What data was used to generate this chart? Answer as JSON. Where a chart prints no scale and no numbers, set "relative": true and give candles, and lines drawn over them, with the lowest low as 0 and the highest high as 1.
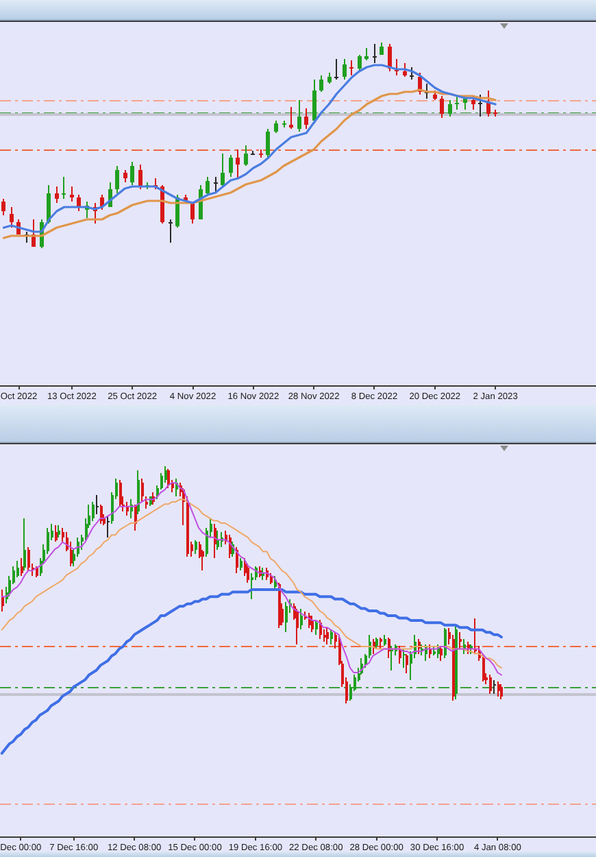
{
  "chart_data": [
    {
      "type": "candlestick",
      "relative": true,
      "categories": [
        null,
        null,
        "Oct 2022",
        null,
        null,
        null,
        null,
        null,
        null,
        "13 Oct 2022",
        null,
        null,
        null,
        null,
        null,
        null,
        null,
        "25 Oct 2022",
        null,
        null,
        null,
        null,
        null,
        null,
        null,
        "4 Nov 2022",
        null,
        null,
        null,
        null,
        null,
        null,
        null,
        "16 Nov 2022",
        null,
        null,
        null,
        null,
        null,
        null,
        null,
        "28 Nov 2022",
        null,
        null,
        null,
        null,
        null,
        null,
        null,
        "8 Dec 2022",
        null,
        null,
        null,
        null,
        null,
        null,
        null,
        "20 Dec 2022",
        null,
        null,
        null,
        null,
        null,
        null,
        null,
        "2 Jan 2023"
      ],
      "ohlc": [
        [
          0.23,
          0.24,
          0.16,
          0.18
        ],
        [
          0.17,
          0.2,
          0.1,
          0.13
        ],
        [
          0.13,
          0.14,
          0.07,
          0.07
        ],
        [
          0.07,
          0.08,
          0.03,
          0.07
        ],
        [
          0.07,
          0.14,
          0.01,
          0.01
        ],
        [
          0.01,
          0.14,
          0.0,
          0.13
        ],
        [
          0.13,
          0.31,
          0.12,
          0.27
        ],
        [
          0.27,
          0.3,
          0.22,
          0.24
        ],
        [
          0.26,
          0.35,
          0.24,
          0.27
        ],
        [
          0.26,
          0.3,
          0.23,
          0.25
        ],
        [
          0.25,
          0.26,
          0.18,
          0.2
        ],
        [
          0.19,
          0.23,
          0.15,
          0.21
        ],
        [
          0.2,
          0.22,
          0.12,
          0.18
        ],
        [
          0.25,
          0.26,
          0.19,
          0.2
        ],
        [
          0.2,
          0.32,
          0.2,
          0.29
        ],
        [
          0.29,
          0.4,
          0.27,
          0.38
        ],
        [
          0.37,
          0.38,
          0.32,
          0.34
        ],
        [
          0.32,
          0.42,
          0.31,
          0.4
        ],
        [
          0.38,
          0.41,
          0.29,
          0.3
        ],
        [
          0.3,
          0.32,
          0.29,
          0.31
        ],
        [
          0.31,
          0.34,
          0.29,
          0.3
        ],
        [
          0.3,
          0.31,
          0.12,
          0.13
        ],
        [
          0.13,
          0.14,
          0.03,
          0.13
        ],
        [
          0.11,
          0.26,
          0.1,
          0.25
        ],
        [
          0.25,
          0.26,
          0.22,
          0.23
        ],
        [
          0.22,
          0.23,
          0.12,
          0.14
        ],
        [
          0.14,
          0.31,
          0.14,
          0.29
        ],
        [
          0.27,
          0.35,
          0.26,
          0.33
        ],
        [
          0.32,
          0.35,
          0.27,
          0.32
        ],
        [
          0.31,
          0.46,
          0.3,
          0.37
        ],
        [
          0.37,
          0.45,
          0.35,
          0.44
        ],
        [
          0.44,
          0.48,
          0.34,
          0.41
        ],
        [
          0.41,
          0.5,
          0.4,
          0.46
        ],
        [
          0.46,
          0.47,
          0.45,
          0.46
        ],
        [
          0.46,
          0.48,
          0.44,
          0.45
        ],
        [
          0.45,
          0.58,
          0.44,
          0.57
        ],
        [
          0.57,
          0.62,
          0.56,
          0.61
        ],
        [
          0.6,
          0.62,
          0.59,
          0.61
        ],
        [
          0.6,
          0.69,
          0.58,
          0.59
        ],
        [
          0.58,
          0.72,
          0.57,
          0.64
        ],
        [
          0.64,
          0.68,
          0.58,
          0.6
        ],
        [
          0.62,
          0.82,
          0.61,
          0.77
        ],
        [
          0.77,
          0.84,
          0.76,
          0.82
        ],
        [
          0.81,
          0.85,
          0.8,
          0.83
        ],
        [
          0.83,
          0.92,
          0.82,
          0.83
        ],
        [
          0.83,
          0.92,
          0.82,
          0.89
        ],
        [
          0.88,
          0.91,
          0.84,
          0.87
        ],
        [
          0.87,
          0.94,
          0.86,
          0.93
        ],
        [
          0.92,
          0.97,
          0.91,
          0.93
        ],
        [
          0.93,
          0.99,
          0.9,
          0.93
        ],
        [
          0.94,
          1.0,
          0.94,
          0.98
        ],
        [
          0.98,
          0.99,
          0.86,
          0.87
        ],
        [
          0.87,
          0.92,
          0.84,
          0.86
        ],
        [
          0.86,
          0.9,
          0.83,
          0.84
        ],
        [
          0.84,
          0.88,
          0.82,
          0.84
        ],
        [
          0.83,
          0.85,
          0.75,
          0.76
        ],
        [
          0.76,
          0.8,
          0.73,
          0.76
        ],
        [
          0.75,
          0.77,
          0.72,
          0.73
        ],
        [
          0.73,
          0.74,
          0.63,
          0.65
        ],
        [
          0.65,
          0.72,
          0.64,
          0.7
        ],
        [
          0.7,
          0.74,
          0.67,
          0.71
        ],
        [
          0.71,
          0.74,
          0.67,
          0.73
        ],
        [
          0.72,
          0.74,
          0.67,
          0.7
        ],
        [
          0.71,
          0.75,
          0.64,
          0.71
        ],
        [
          0.71,
          0.77,
          0.64,
          0.65
        ],
        [
          0.66,
          0.67,
          0.64,
          0.65
        ]
      ],
      "colors": [
        "#d81818",
        "#d81818",
        "#d81818",
        "#2a2a2a",
        "#d81818",
        "#20a020",
        "#20a020",
        "#d81818",
        "#20a020",
        "#d81818",
        "#d81818",
        "#20a020",
        "#d81818",
        "#d81818",
        "#20a020",
        "#20a020",
        "#d81818",
        "#20a020",
        "#d81818",
        "#20a020",
        "#d81818",
        "#d81818",
        "#2a2a2a",
        "#20a020",
        "#d81818",
        "#d81818",
        "#20a020",
        "#20a020",
        "#2a2a2a",
        "#20a020",
        "#20a020",
        "#d81818",
        "#20a020",
        "#2a2a2a",
        "#d81818",
        "#20a020",
        "#20a020",
        "#20a020",
        "#d81818",
        "#20a020",
        "#d81818",
        "#20a020",
        "#20a020",
        "#20a020",
        "#2a2a2a",
        "#20a020",
        "#d81818",
        "#20a020",
        "#20a020",
        "#2a2a2a",
        "#20a020",
        "#d81818",
        "#d81818",
        "#d81818",
        "#2a2a2a",
        "#d81818",
        "#2a2a2a",
        "#d81818",
        "#d81818",
        "#20a020",
        "#20a020",
        "#20a020",
        "#d81818",
        "#2a2a2a",
        "#d81818",
        "#d81818"
      ],
      "series": [
        {
          "type": "line",
          "color": "#4a7de0",
          "values": [
            0.1,
            0.11,
            0.1,
            0.09,
            0.08,
            0.08,
            0.14,
            0.18,
            0.2,
            0.2,
            0.2,
            0.2,
            0.19,
            0.2,
            0.23,
            0.26,
            0.29,
            0.3,
            0.3,
            0.3,
            0.3,
            0.28,
            0.26,
            0.24,
            0.23,
            0.22,
            0.24,
            0.26,
            0.27,
            0.3,
            0.33,
            0.34,
            0.36,
            0.39,
            0.41,
            0.44,
            0.48,
            0.51,
            0.54,
            0.55,
            0.56,
            0.61,
            0.66,
            0.7,
            0.75,
            0.79,
            0.83,
            0.86,
            0.88,
            0.89,
            0.89,
            0.88,
            0.87,
            0.87,
            0.86,
            0.84,
            0.81,
            0.78,
            0.76,
            0.75,
            0.74,
            0.73,
            0.73,
            0.72,
            0.71,
            0.7
          ]
        },
        {
          "type": "line",
          "color": "#e0964a",
          "values": [
            0.05,
            0.06,
            0.06,
            0.06,
            0.06,
            0.06,
            0.08,
            0.1,
            0.11,
            0.12,
            0.13,
            0.14,
            0.14,
            0.14,
            0.16,
            0.17,
            0.19,
            0.21,
            0.22,
            0.23,
            0.23,
            0.23,
            0.22,
            0.22,
            0.22,
            0.22,
            0.23,
            0.24,
            0.25,
            0.26,
            0.27,
            0.29,
            0.31,
            0.32,
            0.33,
            0.35,
            0.37,
            0.4,
            0.42,
            0.44,
            0.46,
            0.48,
            0.52,
            0.55,
            0.58,
            0.62,
            0.65,
            0.67,
            0.7,
            0.72,
            0.74,
            0.75,
            0.75,
            0.76,
            0.76,
            0.77,
            0.76,
            0.76,
            0.75,
            0.75,
            0.74,
            0.74,
            0.74,
            0.73,
            0.73,
            0.72
          ]
        }
      ],
      "ref_lines": [
        {
          "axis": "y",
          "value": 0.72,
          "color": "#f4a48c",
          "line_style": "dashed"
        },
        {
          "axis": "y",
          "value": 0.66,
          "color": "#3aa03a",
          "line_style": "dashed"
        },
        {
          "axis": "y",
          "value": 0.65,
          "color": "#c4c4d0",
          "line_style": "solid"
        },
        {
          "axis": "y",
          "value": 0.48,
          "color": "#ee6644",
          "line_style": "dashed"
        }
      ]
    },
    {
      "type": "candlestick",
      "relative": true,
      "categories": [
        null,
        null,
        null,
        null,
        null,
        "Dec 00:00",
        null,
        null,
        null,
        null,
        null,
        null,
        null,
        null,
        null,
        null,
        null,
        null,
        null,
        "7 Dec 16:00",
        null,
        null,
        null,
        null,
        null,
        null,
        null,
        null,
        null,
        null,
        null,
        null,
        null,
        null,
        null,
        "12 Dec 08:00",
        null,
        null,
        null,
        null,
        null,
        null,
        null,
        null,
        null,
        null,
        null,
        null,
        null,
        null,
        null,
        "15 Dec 00:00",
        null,
        null,
        null,
        null,
        null,
        null,
        null,
        null,
        null,
        null,
        null,
        null,
        null,
        null,
        null,
        "19 Dec 16:00",
        null,
        null,
        null,
        null,
        null,
        null,
        null,
        null,
        null,
        null,
        null,
        null,
        null,
        null,
        null,
        "22 Dec 08:00",
        null,
        null,
        null,
        null,
        null,
        null,
        null,
        null,
        null,
        null,
        null,
        null,
        null,
        null,
        null,
        "28 Dec 00:00",
        null,
        null,
        null,
        null,
        null,
        null,
        null,
        null,
        null,
        null,
        null,
        null,
        null,
        null,
        null,
        "30 Dec 16:00",
        null,
        null,
        null,
        null,
        null,
        null,
        null,
        null,
        null,
        null,
        null,
        null,
        null,
        null,
        null,
        "4 Jan 08:00",
        null
      ],
      "ohlc": [
        [
          0.45,
          0.48,
          0.39,
          0.41
        ],
        [
          0.44,
          0.49,
          0.42,
          0.47
        ],
        [
          0.46,
          0.54,
          0.45,
          0.52
        ],
        [
          0.51,
          0.58,
          0.5,
          0.56
        ],
        [
          0.54,
          0.6,
          0.53,
          0.57
        ],
        [
          0.58,
          0.61,
          0.54,
          0.55
        ],
        [
          0.57,
          0.78,
          0.56,
          0.65
        ],
        [
          0.65,
          0.66,
          0.56,
          0.57
        ],
        [
          0.57,
          0.59,
          0.54,
          0.56
        ],
        [
          0.57,
          0.58,
          0.53,
          0.54
        ],
        [
          0.55,
          0.61,
          0.54,
          0.6
        ],
        [
          0.6,
          0.67,
          0.59,
          0.65
        ],
        [
          0.64,
          0.74,
          0.63,
          0.72
        ],
        [
          0.7,
          0.76,
          0.69,
          0.73
        ],
        [
          0.72,
          0.75,
          0.68,
          0.69
        ],
        [
          0.71,
          0.75,
          0.7,
          0.73
        ],
        [
          0.72,
          0.74,
          0.68,
          0.7
        ],
        [
          0.7,
          0.72,
          0.64,
          0.65
        ],
        [
          0.65,
          0.68,
          0.58,
          0.59
        ],
        [
          0.6,
          0.65,
          0.58,
          0.63
        ],
        [
          0.63,
          0.7,
          0.62,
          0.68
        ],
        [
          0.68,
          0.71,
          0.65,
          0.7
        ],
        [
          0.7,
          0.78,
          0.69,
          0.76
        ],
        [
          0.75,
          0.84,
          0.74,
          0.79
        ],
        [
          0.78,
          0.85,
          0.77,
          0.84
        ],
        [
          0.83,
          0.88,
          0.8,
          0.83
        ],
        [
          0.83,
          0.84,
          0.76,
          0.77
        ],
        [
          0.78,
          0.8,
          0.75,
          0.76
        ],
        [
          0.77,
          0.79,
          0.7,
          0.77
        ],
        [
          0.77,
          0.89,
          0.76,
          0.88
        ],
        [
          0.87,
          0.95,
          0.86,
          0.93
        ],
        [
          0.93,
          0.94,
          0.83,
          0.84
        ],
        [
          0.84,
          0.87,
          0.81,
          0.83
        ],
        [
          0.83,
          0.85,
          0.79,
          0.81
        ],
        [
          0.81,
          0.86,
          0.78,
          0.84
        ],
        [
          0.83,
          0.84,
          0.73,
          0.76
        ],
        [
          0.81,
          0.98,
          0.8,
          0.94
        ],
        [
          0.93,
          0.95,
          0.85,
          0.87
        ],
        [
          0.85,
          0.87,
          0.82,
          0.84
        ],
        [
          0.84,
          0.87,
          0.83,
          0.87
        ],
        [
          0.87,
          0.89,
          0.84,
          0.85
        ],
        [
          0.87,
          0.92,
          0.86,
          0.91
        ],
        [
          0.91,
          0.97,
          0.9,
          0.96
        ],
        [
          0.94,
          1.0,
          0.93,
          0.98
        ],
        [
          0.98,
          0.99,
          0.91,
          0.92
        ],
        [
          0.93,
          0.94,
          0.89,
          0.91
        ],
        [
          0.9,
          0.95,
          0.87,
          0.93
        ],
        [
          0.92,
          0.93,
          0.87,
          0.89
        ],
        [
          0.9,
          0.91,
          0.75,
          0.85
        ],
        [
          0.85,
          0.87,
          0.62,
          0.63
        ],
        [
          0.67,
          0.68,
          0.62,
          0.64
        ],
        [
          0.65,
          0.69,
          0.63,
          0.68
        ],
        [
          0.67,
          0.68,
          0.61,
          0.62
        ],
        [
          0.64,
          0.65,
          0.56,
          0.62
        ],
        [
          0.63,
          0.74,
          0.62,
          0.73
        ],
        [
          0.72,
          0.78,
          0.7,
          0.76
        ],
        [
          0.74,
          0.76,
          0.61,
          0.67
        ],
        [
          0.66,
          0.73,
          0.65,
          0.69
        ],
        [
          0.68,
          0.72,
          0.66,
          0.7
        ],
        [
          0.71,
          0.73,
          0.67,
          0.68
        ],
        [
          0.7,
          0.71,
          0.61,
          0.63
        ],
        [
          0.63,
          0.68,
          0.62,
          0.67
        ],
        [
          0.65,
          0.66,
          0.55,
          0.57
        ],
        [
          0.57,
          0.61,
          0.56,
          0.6
        ],
        [
          0.59,
          0.61,
          0.54,
          0.55
        ],
        [
          0.57,
          0.59,
          0.51,
          0.52
        ],
        [
          0.52,
          0.55,
          0.44,
          0.53
        ],
        [
          0.53,
          0.58,
          0.52,
          0.57
        ],
        [
          0.56,
          0.58,
          0.53,
          0.54
        ],
        [
          0.54,
          0.57,
          0.52,
          0.55
        ],
        [
          0.56,
          0.57,
          0.52,
          0.53
        ],
        [
          0.54,
          0.55,
          0.5,
          0.51
        ],
        [
          0.49,
          0.54,
          0.48,
          0.52
        ],
        [
          0.5,
          0.51,
          0.32,
          0.33
        ],
        [
          0.4,
          0.42,
          0.33,
          0.34
        ],
        [
          0.34,
          0.43,
          0.3,
          0.41
        ],
        [
          0.41,
          0.44,
          0.38,
          0.42
        ],
        [
          0.41,
          0.42,
          0.35,
          0.36
        ],
        [
          0.39,
          0.4,
          0.25,
          0.32
        ],
        [
          0.33,
          0.4,
          0.31,
          0.37
        ],
        [
          0.37,
          0.39,
          0.35,
          0.36
        ],
        [
          0.37,
          0.38,
          0.32,
          0.33
        ],
        [
          0.35,
          0.37,
          0.3,
          0.31
        ],
        [
          0.31,
          0.35,
          0.29,
          0.34
        ],
        [
          0.34,
          0.35,
          0.27,
          0.29
        ],
        [
          0.29,
          0.31,
          0.26,
          0.28
        ],
        [
          0.3,
          0.32,
          0.25,
          0.27
        ],
        [
          0.27,
          0.31,
          0.25,
          0.3
        ],
        [
          0.29,
          0.3,
          0.23,
          0.26
        ],
        [
          0.27,
          0.29,
          0.16,
          0.17
        ],
        [
          0.17,
          0.18,
          0.07,
          0.08
        ],
        [
          0.09,
          0.11,
          0.0,
          0.01
        ],
        [
          0.02,
          0.08,
          0.01,
          0.07
        ],
        [
          0.06,
          0.12,
          0.05,
          0.11
        ],
        [
          0.1,
          0.15,
          0.09,
          0.13
        ],
        [
          0.13,
          0.19,
          0.12,
          0.17
        ],
        [
          0.16,
          0.21,
          0.15,
          0.2
        ],
        [
          0.2,
          0.29,
          0.19,
          0.26
        ],
        [
          0.26,
          0.27,
          0.21,
          0.23
        ],
        [
          0.24,
          0.28,
          0.23,
          0.27
        ],
        [
          0.27,
          0.28,
          0.23,
          0.26
        ],
        [
          0.25,
          0.29,
          0.24,
          0.27
        ],
        [
          0.27,
          0.28,
          0.19,
          0.22
        ],
        [
          0.22,
          0.24,
          0.14,
          0.23
        ],
        [
          0.22,
          0.25,
          0.2,
          0.24
        ],
        [
          0.23,
          0.24,
          0.17,
          0.19
        ],
        [
          0.2,
          0.23,
          0.15,
          0.21
        ],
        [
          0.2,
          0.21,
          0.13,
          0.16
        ],
        [
          0.17,
          0.22,
          0.1,
          0.21
        ],
        [
          0.21,
          0.29,
          0.19,
          0.26
        ],
        [
          0.26,
          0.27,
          0.21,
          0.23
        ],
        [
          0.22,
          0.25,
          0.2,
          0.23
        ],
        [
          0.21,
          0.25,
          0.18,
          0.24
        ],
        [
          0.23,
          0.25,
          0.19,
          0.21
        ],
        [
          0.21,
          0.24,
          0.2,
          0.22
        ],
        [
          0.21,
          0.25,
          0.19,
          0.24
        ],
        [
          0.23,
          0.24,
          0.18,
          0.2
        ],
        [
          0.2,
          0.32,
          0.19,
          0.31
        ],
        [
          0.3,
          0.32,
          0.25,
          0.27
        ],
        [
          0.27,
          0.29,
          0.01,
          0.03
        ],
        [
          0.04,
          0.33,
          0.02,
          0.31
        ],
        [
          0.27,
          0.3,
          0.23,
          0.26
        ],
        [
          0.23,
          0.27,
          0.21,
          0.25
        ],
        [
          0.25,
          0.26,
          0.21,
          0.23
        ],
        [
          0.23,
          0.25,
          0.21,
          0.24
        ],
        [
          0.23,
          0.36,
          0.21,
          0.22
        ],
        [
          0.22,
          0.24,
          0.18,
          0.19
        ],
        [
          0.19,
          0.21,
          0.09,
          0.1
        ],
        [
          0.11,
          0.13,
          0.08,
          0.1
        ],
        [
          0.11,
          0.12,
          0.04,
          0.05
        ],
        [
          0.08,
          0.1,
          0.04,
          0.08
        ],
        [
          0.08,
          0.09,
          0.03,
          0.05
        ],
        [
          0.07,
          0.08,
          0.02,
          0.03
        ]
      ],
      "colors": [
        "#d81818",
        "#20a020",
        "#20a020",
        "#20a020",
        "#20a020",
        "#d81818",
        "#20a020",
        "#d81818",
        "#d81818",
        "#d81818",
        "#20a020",
        "#20a020",
        "#20a020",
        "#20a020",
        "#d81818",
        "#20a020",
        "#d81818",
        "#d81818",
        "#d81818",
        "#20a020",
        "#20a020",
        "#20a020",
        "#20a020",
        "#20a020",
        "#20a020",
        "#2a2a2a",
        "#d81818",
        "#d81818",
        "#2a2a2a",
        "#20a020",
        "#20a020",
        "#d81818",
        "#d81818",
        "#d81818",
        "#20a020",
        "#d81818",
        "#20a020",
        "#d81818",
        "#d81818",
        "#20a020",
        "#d81818",
        "#20a020",
        "#20a020",
        "#20a020",
        "#d81818",
        "#d81818",
        "#20a020",
        "#d81818",
        "#d81818",
        "#d81818",
        "#d81818",
        "#20a020",
        "#d81818",
        "#d81818",
        "#20a020",
        "#20a020",
        "#d81818",
        "#20a020",
        "#20a020",
        "#d81818",
        "#d81818",
        "#20a020",
        "#d81818",
        "#20a020",
        "#d81818",
        "#d81818",
        "#20a020",
        "#20a020",
        "#d81818",
        "#20a020",
        "#d81818",
        "#d81818",
        "#20a020",
        "#d81818",
        "#d81818",
        "#20a020",
        "#20a020",
        "#d81818",
        "#d81818",
        "#20a020",
        "#d81818",
        "#d81818",
        "#d81818",
        "#20a020",
        "#d81818",
        "#d81818",
        "#d81818",
        "#20a020",
        "#d81818",
        "#d81818",
        "#d81818",
        "#d81818",
        "#20a020",
        "#20a020",
        "#20a020",
        "#20a020",
        "#20a020",
        "#20a020",
        "#d81818",
        "#20a020",
        "#d81818",
        "#20a020",
        "#d81818",
        "#20a020",
        "#20a020",
        "#d81818",
        "#20a020",
        "#d81818",
        "#20a020",
        "#20a020",
        "#d81818",
        "#20a020",
        "#20a020",
        "#d81818",
        "#20a020",
        "#20a020",
        "#d81818",
        "#20a020",
        "#d81818",
        "#d81818",
        "#20a020",
        "#d81818",
        "#20a020",
        "#d81818",
        "#20a020",
        "#d81818",
        "#d81818",
        "#d81818",
        "#d81818",
        "#d81818",
        "#2a2a2a",
        "#d81818",
        "#d81818"
      ],
      "series": [
        {
          "type": "line",
          "color": "#c050e0",
          "values": [
            0.45,
            0.45,
            0.46,
            0.48,
            0.49,
            0.51,
            0.54,
            0.56,
            0.56,
            0.57,
            0.58,
            0.59,
            0.61,
            0.63,
            0.65,
            0.66,
            0.68,
            0.67,
            0.66,
            0.65,
            0.66,
            0.66,
            0.68,
            0.71,
            0.74,
            0.76,
            0.78,
            0.78,
            0.79,
            0.8,
            0.81,
            0.83,
            0.83,
            0.83,
            0.83,
            0.83,
            0.84,
            0.85,
            0.86,
            0.86,
            0.86,
            0.87,
            0.89,
            0.9,
            0.92,
            0.93,
            0.93,
            0.91,
            0.9,
            0.86,
            0.82,
            0.78,
            0.74,
            0.72,
            0.71,
            0.7,
            0.7,
            0.69,
            0.69,
            0.69,
            0.68,
            0.66,
            0.64,
            0.62,
            0.61,
            0.58,
            0.57,
            0.56,
            0.55,
            0.55,
            0.55,
            0.54,
            0.53,
            0.5,
            0.47,
            0.45,
            0.42,
            0.4,
            0.39,
            0.38,
            0.37,
            0.36,
            0.35,
            0.35,
            0.34,
            0.32,
            0.32,
            0.31,
            0.3,
            0.29,
            0.24,
            0.2,
            0.15,
            0.13,
            0.13,
            0.14,
            0.16,
            0.17,
            0.2,
            0.21,
            0.22,
            0.23,
            0.23,
            0.23,
            0.23,
            0.23,
            0.22,
            0.22,
            0.21,
            0.22,
            0.22,
            0.22,
            0.23,
            0.23,
            0.23,
            0.23,
            0.24,
            0.24,
            0.23,
            0.22,
            0.23,
            0.23,
            0.23,
            0.23,
            0.23,
            0.23,
            0.23,
            0.21,
            0.19,
            0.18,
            0.16,
            0.13,
            0.12
          ]
        },
        {
          "type": "line",
          "color": "#eea868",
          "values": [
            0.31,
            0.33,
            0.35,
            0.36,
            0.38,
            0.39,
            0.41,
            0.42,
            0.43,
            0.45,
            0.46,
            0.47,
            0.48,
            0.49,
            0.5,
            0.51,
            0.52,
            0.54,
            0.55,
            0.56,
            0.57,
            0.59,
            0.6,
            0.62,
            0.63,
            0.65,
            0.66,
            0.68,
            0.69,
            0.71,
            0.71,
            0.73,
            0.74,
            0.75,
            0.76,
            0.76,
            0.77,
            0.78,
            0.79,
            0.8,
            0.81,
            0.82,
            0.83,
            0.84,
            0.84,
            0.85,
            0.85,
            0.86,
            0.86,
            0.85,
            0.84,
            0.83,
            0.82,
            0.8,
            0.79,
            0.78,
            0.77,
            0.77,
            0.76,
            0.76,
            0.75,
            0.74,
            0.73,
            0.72,
            0.71,
            0.7,
            0.68,
            0.67,
            0.66,
            0.64,
            0.64,
            0.61,
            0.6,
            0.58,
            0.56,
            0.55,
            0.53,
            0.51,
            0.48,
            0.47,
            0.45,
            0.44,
            0.43,
            0.41,
            0.39,
            0.38,
            0.36,
            0.35,
            0.33,
            0.32,
            0.3,
            0.28,
            0.27,
            0.26,
            0.25,
            0.24,
            0.24,
            0.24,
            0.24,
            0.23,
            0.23,
            0.23,
            0.23,
            0.23,
            0.23,
            0.23,
            0.23,
            0.23,
            0.23,
            0.24,
            0.24,
            0.24,
            0.24,
            0.24,
            0.24,
            0.24,
            0.24,
            0.24,
            0.24,
            0.23,
            0.23,
            0.23,
            0.23,
            0.22,
            0.22,
            0.21,
            0.21,
            0.2,
            0.19,
            0.19,
            0.18,
            0.16,
            0.15
          ]
        },
        {
          "type": "line",
          "color": "#3f6fe6",
          "values": [
            -0.21,
            -0.19,
            -0.17,
            -0.16,
            -0.14,
            -0.13,
            -0.11,
            -0.1,
            -0.08,
            -0.07,
            -0.05,
            -0.04,
            -0.03,
            -0.01,
            0.0,
            0.01,
            0.03,
            0.04,
            0.05,
            0.07,
            0.08,
            0.09,
            0.1,
            0.12,
            0.13,
            0.14,
            0.16,
            0.17,
            0.18,
            0.2,
            0.21,
            0.23,
            0.24,
            0.26,
            0.27,
            0.29,
            0.3,
            0.31,
            0.32,
            0.33,
            0.34,
            0.35,
            0.37,
            0.37,
            0.38,
            0.39,
            0.4,
            0.41,
            0.41,
            0.42,
            0.42,
            0.43,
            0.43,
            0.44,
            0.44,
            0.45,
            0.45,
            0.45,
            0.46,
            0.46,
            0.46,
            0.47,
            0.47,
            0.47,
            0.47,
            0.47,
            0.48,
            0.48,
            0.48,
            0.48,
            0.48,
            0.48,
            0.48,
            0.48,
            0.48,
            0.47,
            0.47,
            0.47,
            0.47,
            0.47,
            0.46,
            0.46,
            0.46,
            0.46,
            0.45,
            0.45,
            0.45,
            0.45,
            0.44,
            0.44,
            0.44,
            0.43,
            0.42,
            0.42,
            0.41,
            0.4,
            0.4,
            0.39,
            0.39,
            0.39,
            0.38,
            0.38,
            0.37,
            0.37,
            0.37,
            0.36,
            0.36,
            0.36,
            0.35,
            0.35,
            0.35,
            0.35,
            0.34,
            0.34,
            0.34,
            0.34,
            0.34,
            0.33,
            0.33,
            0.33,
            0.33,
            0.32,
            0.32,
            0.32,
            0.31,
            0.31,
            0.31,
            0.31,
            0.3,
            0.3,
            0.29,
            0.29,
            0.28
          ]
        }
      ],
      "ref_lines": [
        {
          "axis": "y",
          "value": 0.24,
          "color": "#f06a3c",
          "line_style": "dashed"
        },
        {
          "axis": "y",
          "value": 0.07,
          "color": "#3aa03a",
          "line_style": "dashed"
        },
        {
          "axis": "y",
          "value": 0.04,
          "color": "#c4c4d0",
          "line_style": "solid"
        },
        {
          "axis": "y",
          "value": -0.42,
          "color": "#f4a090",
          "line_style": "dashed"
        }
      ]
    }
  ]
}
